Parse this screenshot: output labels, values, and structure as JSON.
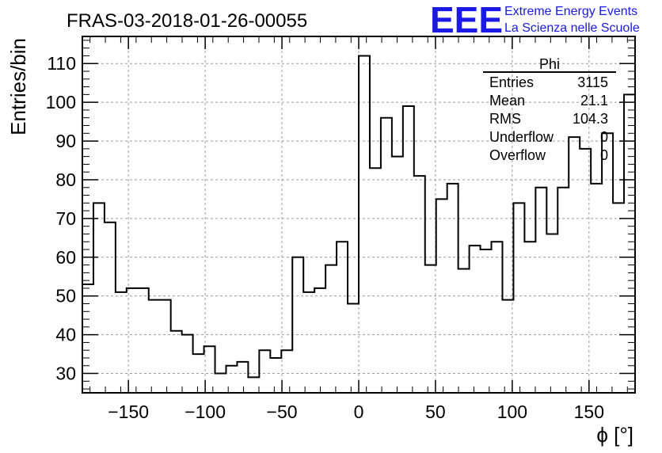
{
  "chart_data": {
    "type": "histogram",
    "title": "FRAS-03-2018-01-26-00055",
    "xlabel": "ϕ [°]",
    "ylabel": "Entries/bin",
    "xlim": [
      -180,
      180
    ],
    "ylim": [
      25,
      117
    ],
    "xticks": [
      -150,
      -100,
      -50,
      0,
      50,
      100,
      150
    ],
    "yticks": [
      30,
      40,
      50,
      60,
      70,
      80,
      90,
      100,
      110
    ],
    "grid": true,
    "bin_width": 7.2,
    "values": [
      53,
      74,
      69,
      51,
      52,
      52,
      49,
      49,
      41,
      40,
      35,
      37,
      30,
      32,
      33,
      29,
      36,
      34,
      36,
      60,
      51,
      52,
      58,
      64,
      48,
      112,
      83,
      96,
      86,
      99,
      81,
      58,
      75,
      79,
      57,
      63,
      62,
      64,
      49,
      74,
      64,
      78,
      66,
      78,
      91,
      88,
      79,
      92,
      74,
      102
    ],
    "stats_box": {
      "title": "Phi",
      "rows": [
        {
          "label": "Entries",
          "value": "3115"
        },
        {
          "label": "Mean",
          "value": "21.1"
        },
        {
          "label": "RMS",
          "value": "104.3"
        },
        {
          "label": "Underflow",
          "value": "0"
        },
        {
          "label": "Overflow",
          "value": "0"
        }
      ]
    }
  },
  "logo": {
    "letters": "EEE",
    "line1": "Extreme Energy Events",
    "line2": "La Scienza nelle Scuole",
    "color": "#1a1ae6"
  }
}
